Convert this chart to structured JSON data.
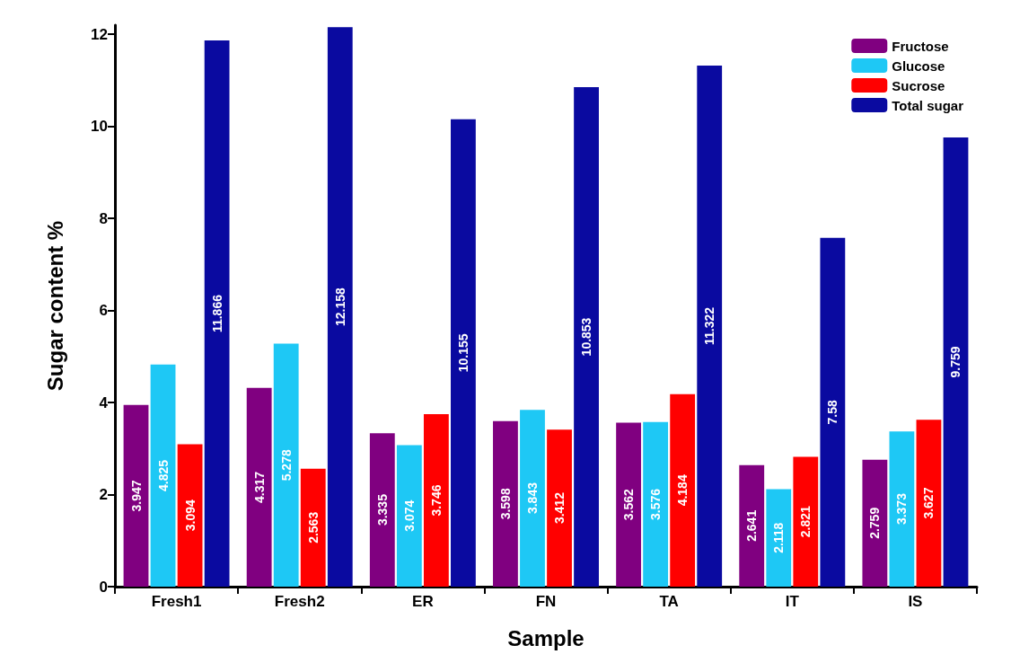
{
  "chart_data": {
    "type": "bar",
    "xlabel": "Sample",
    "ylabel": "Sugar content %",
    "categories": [
      "Fresh1",
      "Fresh2",
      "ER",
      "FN",
      "TA",
      "IT",
      "IS"
    ],
    "series": [
      {
        "name": "Fructose",
        "color": "#800080",
        "values": [
          3.947,
          4.317,
          3.335,
          3.598,
          3.562,
          2.641,
          2.759
        ]
      },
      {
        "name": "Glucose",
        "color": "#1ec8f5",
        "values": [
          4.825,
          5.278,
          3.074,
          3.843,
          3.576,
          2.118,
          3.373
        ]
      },
      {
        "name": "Sucrose",
        "color": "#ff0000",
        "values": [
          3.094,
          2.563,
          3.746,
          3.412,
          4.184,
          2.821,
          3.627
        ]
      },
      {
        "name": "Total sugar",
        "color": "#0a0aa0",
        "values": [
          11.866,
          12.158,
          10.155,
          10.853,
          11.322,
          7.58,
          9.759
        ]
      }
    ],
    "ylim": [
      0,
      12.2
    ],
    "yticks": [
      0,
      2,
      4,
      6,
      8,
      10,
      12
    ],
    "grid": false,
    "legend": "top right",
    "data_labels": true
  }
}
